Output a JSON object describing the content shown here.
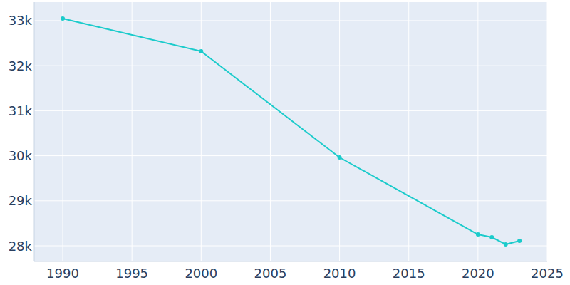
{
  "chart_data": {
    "type": "line",
    "x": [
      1990,
      2000,
      2010,
      2020,
      2021,
      2022,
      2023
    ],
    "values": [
      33047,
      32320,
      29962,
      28253,
      28190,
      28032,
      28111
    ],
    "color": "#1bcbcb",
    "marker": "circle",
    "xlim": [
      1987.94,
      2025
    ],
    "xticks": [
      1990,
      1995,
      2000,
      2005,
      2010,
      2015,
      2020,
      2025
    ],
    "ylim": [
      27652,
      33411
    ],
    "yticks": [
      {
        "value": 28000,
        "label": "28k"
      },
      {
        "value": 29000,
        "label": "29k"
      },
      {
        "value": 30000,
        "label": "30k"
      },
      {
        "value": 31000,
        "label": "31k"
      },
      {
        "value": 32000,
        "label": "32k"
      },
      {
        "value": 33000,
        "label": "33k"
      }
    ],
    "grid": true
  }
}
